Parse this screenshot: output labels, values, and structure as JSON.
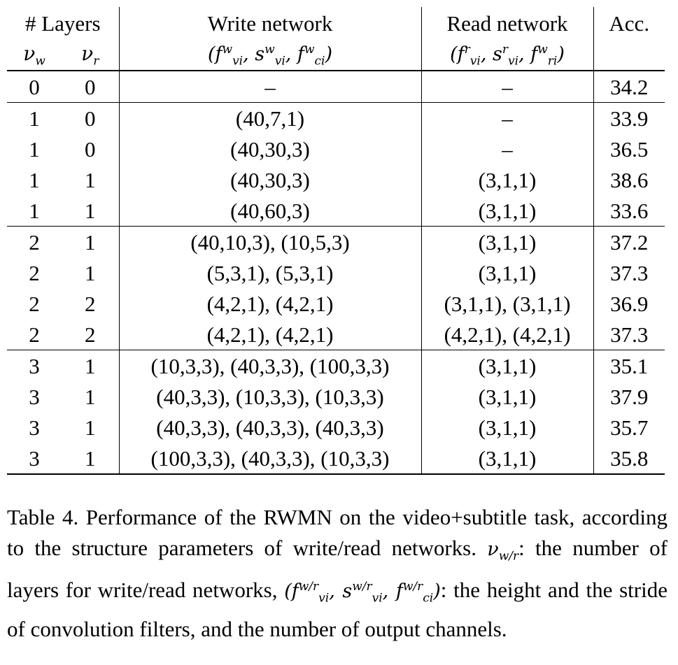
{
  "table": {
    "header": {
      "layers": "# Layers",
      "nu_w": "ν",
      "nu_w_sub": "w",
      "nu_r": "ν",
      "nu_r_sub": "r",
      "write": "Write network",
      "write_params": "(f^w_vi, s^w_vi, f^w_ci)",
      "read": "Read network",
      "read_params": "(f^r_vi, s^r_vi, f^w_ri)",
      "acc": "Acc."
    },
    "rows": [
      {
        "nw": "0",
        "nr": "0",
        "write": "–",
        "read": "–",
        "acc": "34.2"
      },
      {
        "nw": "1",
        "nr": "0",
        "write": "(40,7,1)",
        "read": "–",
        "acc": "33.9"
      },
      {
        "nw": "1",
        "nr": "0",
        "write": "(40,30,3)",
        "read": "–",
        "acc": "36.5"
      },
      {
        "nw": "1",
        "nr": "1",
        "write": "(40,30,3)",
        "read": "(3,1,1)",
        "acc": "38.6"
      },
      {
        "nw": "1",
        "nr": "1",
        "write": "(40,60,3)",
        "read": "(3,1,1)",
        "acc": "33.6"
      },
      {
        "nw": "2",
        "nr": "1",
        "write": "(40,10,3), (10,5,3)",
        "read": "(3,1,1)",
        "acc": "37.2"
      },
      {
        "nw": "2",
        "nr": "1",
        "write": "(5,3,1), (5,3,1)",
        "read": "(3,1,1)",
        "acc": "37.3"
      },
      {
        "nw": "2",
        "nr": "2",
        "write": "(4,2,1), (4,2,1)",
        "read": "(3,1,1), (3,1,1)",
        "acc": "36.9"
      },
      {
        "nw": "2",
        "nr": "2",
        "write": "(4,2,1), (4,2,1)",
        "read": "(4,2,1), (4,2,1)",
        "acc": "37.3"
      },
      {
        "nw": "3",
        "nr": "1",
        "write": "(10,3,3), (40,3,3), (100,3,3)",
        "read": "(3,1,1)",
        "acc": "35.1"
      },
      {
        "nw": "3",
        "nr": "1",
        "write": "(40,3,3), (10,3,3), (10,3,3)",
        "read": "(3,1,1)",
        "acc": "37.9"
      },
      {
        "nw": "3",
        "nr": "1",
        "write": "(40,3,3), (40,3,3), (40,3,3)",
        "read": "(3,1,1)",
        "acc": "35.7"
      },
      {
        "nw": "3",
        "nr": "1",
        "write": "(100,3,3), (40,3,3), (10,3,3)",
        "read": "(3,1,1)",
        "acc": "35.8"
      }
    ]
  },
  "caption": {
    "part1": "Table 4. Performance of the RWMN on the video+subtitle task, according to the structure parameters of write/read networks.",
    "part2": "the number of layers for write/read networks,",
    "part3": "the height and the stride of convolution filters, and the number of output channels."
  }
}
